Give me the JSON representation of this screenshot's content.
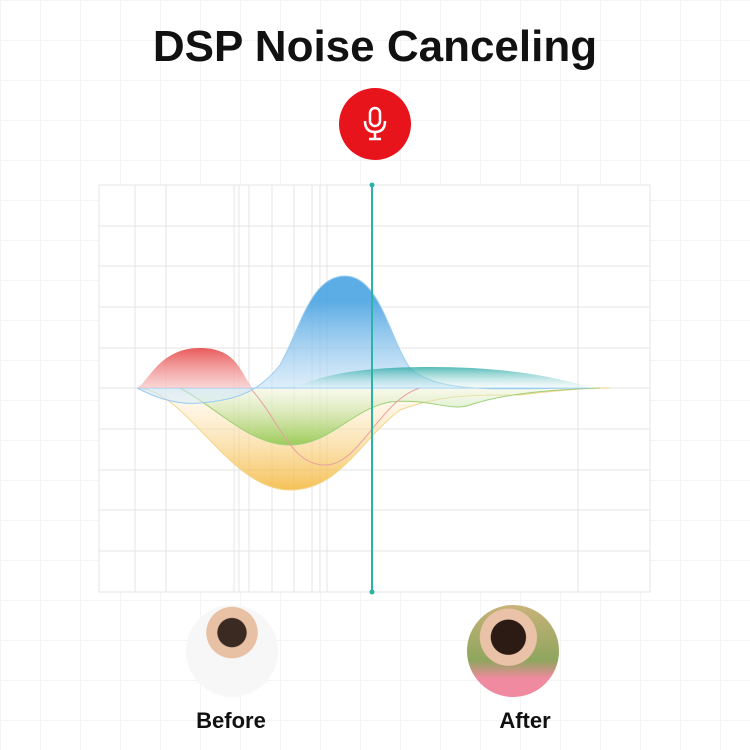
{
  "title": "DSP Noise Canceling",
  "icons": {
    "center": "microphone-icon"
  },
  "colors": {
    "mic_bg": "#e8141b",
    "divider": "#2bb3a8",
    "red": "#e95b5b",
    "blue": "#4aa3e2",
    "teal": "#2aa9a6",
    "green": "#8cc84b",
    "yellow": "#f4b73a"
  },
  "before": {
    "label": "Before"
  },
  "after": {
    "label": "After"
  }
}
